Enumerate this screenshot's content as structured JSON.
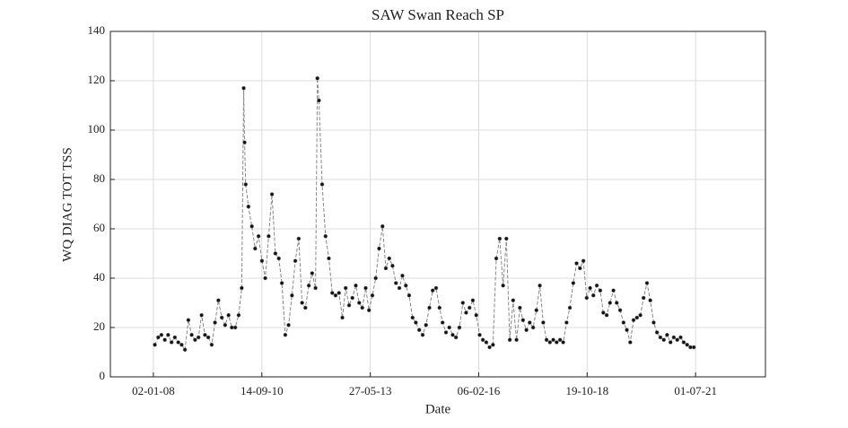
{
  "chart_data": {
    "type": "line",
    "title": "SAW Swan Reach SP",
    "xlabel": "Date",
    "ylabel": "WQ DIAG TOT TSS",
    "color": "#111111",
    "line_color": "#888888",
    "grid": true,
    "xlim": [
      "07-12-06",
      "28-03-23"
    ],
    "xticks": [
      "02-01-08",
      "14-09-10",
      "27-05-13",
      "06-02-16",
      "19-10-18",
      "01-07-21"
    ],
    "ylim": [
      0,
      140
    ],
    "yticks": [
      0,
      20,
      40,
      60,
      80,
      100,
      120,
      140
    ],
    "x": [
      "15-01-08",
      "15-02-08",
      "15-03-08",
      "15-04-08",
      "15-05-08",
      "15-06-08",
      "15-07-08",
      "15-08-08",
      "15-09-08",
      "15-10-08",
      "15-11-08",
      "15-12-08",
      "15-01-09",
      "15-02-09",
      "15-03-09",
      "15-04-09",
      "15-05-09",
      "15-06-09",
      "15-07-09",
      "15-08-09",
      "15-09-09",
      "15-10-09",
      "15-11-09",
      "15-12-09",
      "15-01-10",
      "15-02-10",
      "15-03-10",
      "02-04-10",
      "10-04-10",
      "20-04-10",
      "15-05-10",
      "15-06-10",
      "15-07-10",
      "15-08-10",
      "15-09-10",
      "15-10-10",
      "15-11-10",
      "15-12-10",
      "15-01-11",
      "15-02-11",
      "15-03-11",
      "15-04-11",
      "15-05-11",
      "15-06-11",
      "15-07-11",
      "15-08-11",
      "15-09-11",
      "15-10-11",
      "15-11-11",
      "15-12-11",
      "15-01-12",
      "01-02-12",
      "15-02-12",
      "15-03-12",
      "15-04-12",
      "15-05-12",
      "15-06-12",
      "15-07-12",
      "15-08-12",
      "15-09-12",
      "15-10-12",
      "15-11-12",
      "15-12-12",
      "15-01-13",
      "15-02-13",
      "15-03-13",
      "15-04-13",
      "15-05-13",
      "15-06-13",
      "15-07-13",
      "15-08-13",
      "15-09-13",
      "15-10-13",
      "15-11-13",
      "15-12-13",
      "15-01-14",
      "15-02-14",
      "15-03-14",
      "15-04-14",
      "15-05-14",
      "15-06-14",
      "15-07-14",
      "15-08-14",
      "15-09-14",
      "15-10-14",
      "15-11-14",
      "15-12-14",
      "15-01-15",
      "15-02-15",
      "15-03-15",
      "15-04-15",
      "15-05-15",
      "15-06-15",
      "15-07-15",
      "15-08-15",
      "15-09-15",
      "15-10-15",
      "15-11-15",
      "15-12-15",
      "15-01-16",
      "15-02-16",
      "15-03-16",
      "15-04-16",
      "15-05-16",
      "15-06-16",
      "15-07-16",
      "15-08-16",
      "15-09-16",
      "15-10-16",
      "15-11-16",
      "15-12-16",
      "15-01-17",
      "15-02-17",
      "15-03-17",
      "15-04-17",
      "15-05-17",
      "15-06-17",
      "15-07-17",
      "15-08-17",
      "15-09-17",
      "15-10-17",
      "15-11-17",
      "15-12-17",
      "15-01-18",
      "15-02-18",
      "15-03-18",
      "15-04-18",
      "15-05-18",
      "15-06-18",
      "15-07-18",
      "15-08-18",
      "15-09-18",
      "15-10-18",
      "15-11-18",
      "15-12-18",
      "15-01-19",
      "15-02-19",
      "15-03-19",
      "15-04-19",
      "15-05-19",
      "15-06-19",
      "15-07-19",
      "15-08-19",
      "15-09-19",
      "15-10-19",
      "15-11-19",
      "15-12-19",
      "15-01-20",
      "15-02-20",
      "15-03-20",
      "15-04-20",
      "15-05-20",
      "15-06-20",
      "15-07-20",
      "15-08-20",
      "15-09-20",
      "15-10-20",
      "15-11-20",
      "15-12-20",
      "15-01-21",
      "15-02-21",
      "15-03-21",
      "15-04-21",
      "15-05-21",
      "15-06-21"
    ],
    "values": [
      13,
      16,
      17,
      15,
      17,
      14,
      16,
      14,
      13,
      11,
      23,
      17,
      15,
      16,
      25,
      17,
      16,
      13,
      22,
      31,
      24,
      21,
      25,
      20,
      20,
      25,
      36,
      117,
      95,
      78,
      69,
      61,
      52,
      57,
      47,
      40,
      57,
      74,
      50,
      48,
      38,
      17,
      21,
      33,
      47,
      56,
      30,
      28,
      37,
      42,
      36,
      121,
      112,
      78,
      57,
      48,
      34,
      33,
      34,
      24,
      36,
      29,
      32,
      37,
      30,
      28,
      36,
      27,
      33,
      40,
      52,
      61,
      44,
      48,
      45,
      38,
      36,
      41,
      37,
      33,
      24,
      22,
      19,
      17,
      21,
      28,
      35,
      36,
      28,
      22,
      18,
      20,
      17,
      16,
      20,
      30,
      26,
      28,
      31,
      25,
      17,
      15,
      14,
      12,
      13,
      48,
      56,
      37,
      56,
      15,
      31,
      15,
      28,
      23,
      19,
      22,
      20,
      27,
      37,
      22,
      15,
      14,
      15,
      14,
      15,
      14,
      22,
      28,
      38,
      46,
      44,
      47,
      32,
      36,
      33,
      37,
      35,
      26,
      25,
      30,
      35,
      30,
      27,
      22,
      19,
      14,
      23,
      24,
      25,
      32,
      38,
      31,
      22,
      18,
      16,
      15,
      17,
      14,
      16,
      15,
      16,
      14,
      13,
      12,
      12
    ]
  }
}
